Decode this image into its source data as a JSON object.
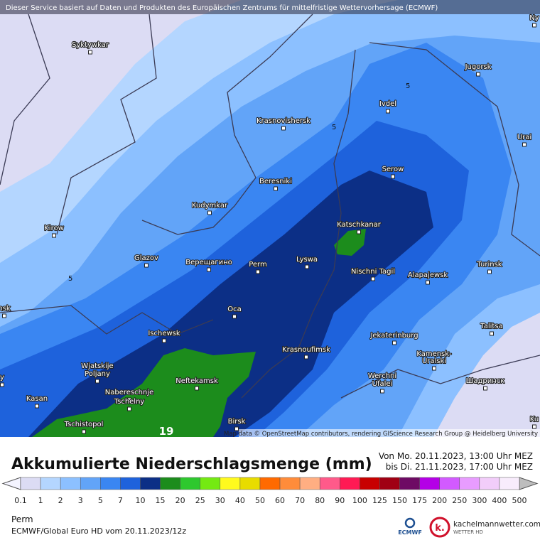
{
  "header": {
    "attribution": "Dieser Service basiert auf Daten und Produkten des Europäischen Zentrums für mittelfristige Wettervorhersage (ECMWF)"
  },
  "map": {
    "credit": "Map data © OpenStreetMap contributors, rendering GIScience Research Group @ Heidelberg University",
    "cities": [
      "Ny",
      "Syktywkar",
      "Jugorsk",
      "Ivdel",
      "Krasnovishersk",
      "Urai",
      "Serow",
      "Beresniki",
      "Kudymkar",
      "Katschkanar",
      "Kirow",
      "Glazov",
      "Верещагино",
      "Perm",
      "Lyswa",
      "Turinsk",
      "Nischni Tagil",
      "Alapajewsk",
      "nsk",
      "Oca",
      "Talitsa",
      "Ischewsk",
      "Jekaterinburg",
      "Krasnoufimsk",
      "Kamensk-",
      "Uralski",
      "Wjatskije",
      "Poljany",
      "Neftekamsk",
      "Werchni",
      "Ufalei",
      "Шадринск",
      "y",
      "Naberesсhnje",
      "Tschelny",
      "Kasan",
      "Tschistopol",
      "Birsk",
      "Ku"
    ],
    "contour_labels": [
      5,
      5,
      5
    ],
    "marker_number": 19
  },
  "legend": {
    "title": "Akkumulierte Niederschlagsmenge (mm)",
    "from": "Von Mo. 20.11.2023, 13:00 Uhr MEZ",
    "to": "bis Di. 21.11.2023, 17:00 Uhr MEZ",
    "ticks": [
      0.1,
      1,
      2,
      3,
      5,
      7,
      10,
      15,
      20,
      25,
      30,
      40,
      50,
      60,
      70,
      80,
      90,
      100,
      125,
      150,
      175,
      200,
      250,
      300,
      400,
      500
    ],
    "colors": [
      "#dcdcf4",
      "#b4d6ff",
      "#8cc0ff",
      "#62a4f8",
      "#3a86f2",
      "#1e62dc",
      "#0c2f86",
      "#1c8c1c",
      "#2ec82e",
      "#74ea12",
      "#fffa1e",
      "#e8dc00",
      "#ff6a00",
      "#ff8c3a",
      "#ffae82",
      "#ff5a8a",
      "#ff1a54",
      "#c80000",
      "#a00014",
      "#6e0a64",
      "#b400e6",
      "#d25aff",
      "#e89cff",
      "#f2cdfa",
      "#f8ecfc"
    ],
    "under_color": "#f4f4ff",
    "over_color": "#bdbdbd"
  },
  "footer": {
    "location": "Perm",
    "model": "ECMWF/Global Euro HD vom  20.11.2023/12z",
    "ecmwf": "ECMWF",
    "brand": "kachelmannwetter.com",
    "brand_sub": "WETTER HD",
    "brand_logo": "k."
  }
}
